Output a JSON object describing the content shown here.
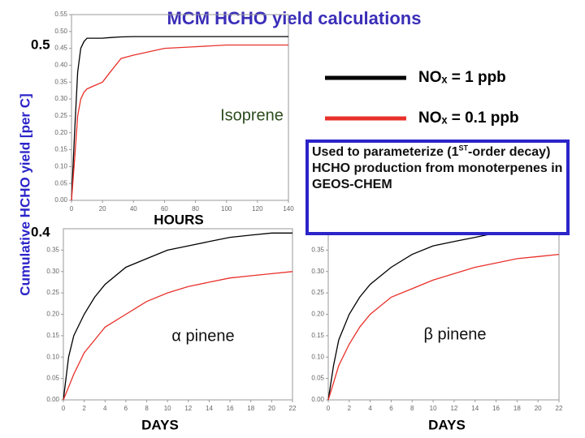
{
  "title": "MCM HCHO yield calculations",
  "y_label": "Cumulative HCHO yield [per C]",
  "annotations": [
    "0.5",
    "0.4"
  ],
  "note": [
    "Used to parameterize (1",
    "ST",
    "-order decay) HCHO production from monoterpenes in GEOS-CHEM"
  ],
  "chart_data": [
    {
      "type": "line",
      "label": "Isoprene",
      "x_label": "HOURS",
      "x": [
        0,
        2,
        4,
        6,
        8,
        10,
        15,
        20,
        25,
        32,
        40,
        60,
        80,
        100,
        120,
        140
      ],
      "series": [
        {
          "name": "NOₓ = 1 ppb",
          "color": "#000000",
          "values": [
            0,
            0.2,
            0.38,
            0.45,
            0.47,
            0.48,
            0.48,
            0.48,
            0.482,
            0.484,
            0.485,
            0.485,
            0.485,
            0.485,
            0.485,
            0.485
          ]
        },
        {
          "name": "NOₓ = 0.1 ppb",
          "color": "#e8302a",
          "values": [
            0,
            0.12,
            0.25,
            0.3,
            0.32,
            0.33,
            0.34,
            0.35,
            0.38,
            0.42,
            0.43,
            0.45,
            0.455,
            0.46,
            0.46,
            0.46
          ]
        }
      ],
      "xlim": [
        0,
        140
      ],
      "xticks": [
        0,
        20,
        40,
        60,
        80,
        100,
        120,
        140
      ],
      "ylim": [
        0,
        0.55
      ],
      "yticks": [
        {
          "value": 0,
          "label": "0.00"
        },
        {
          "value": 0.05,
          "label": "0.05"
        },
        {
          "value": 0.1,
          "label": "0.10"
        },
        {
          "value": 0.15,
          "label": "0.15"
        },
        {
          "value": 0.2,
          "label": "0.20"
        },
        {
          "value": 0.25,
          "label": "0.25"
        },
        {
          "value": 0.3,
          "label": "0.30"
        },
        {
          "value": 0.35,
          "label": "0.35"
        },
        {
          "value": 0.4,
          "label": "0.40"
        },
        {
          "value": 0.45,
          "label": "0.45"
        },
        {
          "value": 0.5,
          "label": "0.50"
        },
        {
          "value": 0.55,
          "label": "0.55"
        }
      ]
    },
    {
      "type": "line",
      "label": "α pinene",
      "x_label": "DAYS",
      "x": [
        0,
        0.5,
        1,
        2,
        3,
        4,
        6,
        8,
        10,
        12,
        14,
        16,
        18,
        20,
        22
      ],
      "series": [
        {
          "color": "#000000",
          "values": [
            0,
            0.1,
            0.15,
            0.2,
            0.24,
            0.27,
            0.31,
            0.33,
            0.35,
            0.36,
            0.37,
            0.38,
            0.385,
            0.39,
            0.39
          ]
        },
        {
          "color": "#e8302a",
          "values": [
            0,
            0.03,
            0.06,
            0.11,
            0.14,
            0.17,
            0.2,
            0.23,
            0.25,
            0.265,
            0.275,
            0.285,
            0.29,
            0.295,
            0.3
          ]
        }
      ],
      "xlim": [
        0,
        22
      ],
      "xticks": [
        0,
        2,
        4,
        6,
        8,
        10,
        12,
        14,
        16,
        18,
        20,
        22
      ],
      "ylim": [
        0,
        0.4
      ],
      "yticks": [
        {
          "value": 0,
          "label": "0.00"
        },
        {
          "value": 0.05,
          "label": "0.05"
        },
        {
          "value": 0.1,
          "label": "0.10"
        },
        {
          "value": 0.15,
          "label": "0.15"
        },
        {
          "value": 0.2,
          "label": "0.20"
        },
        {
          "value": 0.25,
          "label": "0.25"
        },
        {
          "value": 0.3,
          "label": "0.30"
        },
        {
          "value": 0.35,
          "label": "0.35"
        }
      ]
    },
    {
      "type": "line",
      "label": "β pinene",
      "x_label": "DAYS",
      "x": [
        0,
        0.5,
        1,
        2,
        3,
        4,
        6,
        8,
        10,
        12,
        14,
        16,
        18,
        20,
        22
      ],
      "series": [
        {
          "color": "#000000",
          "values": [
            0,
            0.08,
            0.14,
            0.2,
            0.24,
            0.27,
            0.31,
            0.34,
            0.36,
            0.37,
            0.38,
            0.39,
            0.395,
            0.4,
            0.4
          ]
        },
        {
          "color": "#e8302a",
          "values": [
            0,
            0.04,
            0.08,
            0.13,
            0.17,
            0.2,
            0.24,
            0.26,
            0.28,
            0.295,
            0.31,
            0.32,
            0.33,
            0.335,
            0.34
          ]
        }
      ],
      "xlim": [
        0,
        22
      ],
      "xticks": [
        0,
        2,
        4,
        6,
        8,
        10,
        12,
        14,
        16,
        18,
        20,
        22
      ],
      "ylim": [
        0,
        0.4
      ],
      "yticks": [
        {
          "value": 0,
          "label": "0.00"
        },
        {
          "value": 0.05,
          "label": "0.05"
        },
        {
          "value": 0.1,
          "label": "0.10"
        },
        {
          "value": 0.15,
          "label": "0.15"
        },
        {
          "value": 0.2,
          "label": "0.20"
        },
        {
          "value": 0.25,
          "label": "0.25"
        },
        {
          "value": 0.3,
          "label": "0.30"
        },
        {
          "value": 0.35,
          "label": "0.35"
        }
      ]
    }
  ]
}
